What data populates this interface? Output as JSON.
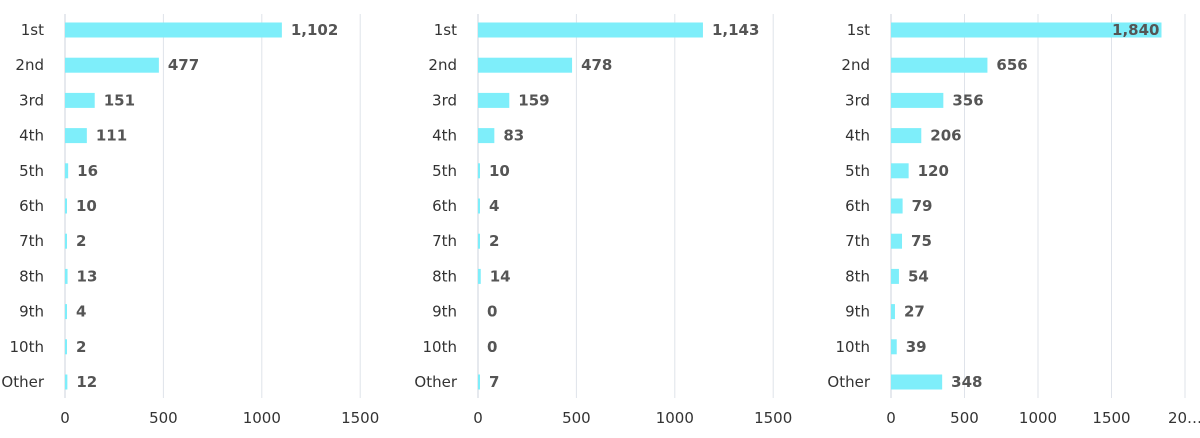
{
  "chart_data": [
    {
      "type": "bar",
      "orientation": "horizontal",
      "categories": [
        "1st",
        "2nd",
        "3rd",
        "4th",
        "5th",
        "6th",
        "7th",
        "8th",
        "9th",
        "10th",
        "Other"
      ],
      "values": [
        1102,
        477,
        151,
        111,
        16,
        10,
        2,
        13,
        4,
        2,
        12
      ],
      "value_labels": [
        "1,102",
        "477",
        "151",
        "111",
        "16",
        "10",
        "2",
        "13",
        "4",
        "2",
        "12"
      ],
      "xlim": [
        0,
        1500
      ],
      "xticks": [
        "0",
        "500",
        "1000",
        "1500"
      ],
      "grid": true,
      "title": "",
      "xlabel": "",
      "ylabel": ""
    },
    {
      "type": "bar",
      "orientation": "horizontal",
      "categories": [
        "1st",
        "2nd",
        "3rd",
        "4th",
        "5th",
        "6th",
        "7th",
        "8th",
        "9th",
        "10th",
        "Other"
      ],
      "values": [
        1143,
        478,
        159,
        83,
        10,
        4,
        2,
        14,
        0,
        0,
        7
      ],
      "value_labels": [
        "1,143",
        "478",
        "159",
        "83",
        "10",
        "4",
        "2",
        "14",
        "0",
        "0",
        "7"
      ],
      "xlim": [
        0,
        1500
      ],
      "xticks": [
        "0",
        "500",
        "1000",
        "1500"
      ],
      "grid": true,
      "title": "",
      "xlabel": "",
      "ylabel": ""
    },
    {
      "type": "bar",
      "orientation": "horizontal",
      "categories": [
        "1st",
        "2nd",
        "3rd",
        "4th",
        "5th",
        "6th",
        "7th",
        "8th",
        "9th",
        "10th",
        "Other"
      ],
      "values": [
        1840,
        656,
        356,
        206,
        120,
        79,
        75,
        54,
        27,
        39,
        348
      ],
      "value_labels": [
        "1,840",
        "656",
        "356",
        "206",
        "120",
        "79",
        "75",
        "54",
        "27",
        "39",
        "348"
      ],
      "xlim": [
        0,
        2000
      ],
      "xticks": [
        "0",
        "500",
        "1000",
        "1500",
        "20…"
      ],
      "grid": true,
      "title": "",
      "xlabel": "",
      "ylabel": ""
    }
  ],
  "colors": {
    "bar": "#7eeefa",
    "gridline": "#dfe3ea",
    "label_text": "#333333",
    "value_text": "#555555"
  }
}
